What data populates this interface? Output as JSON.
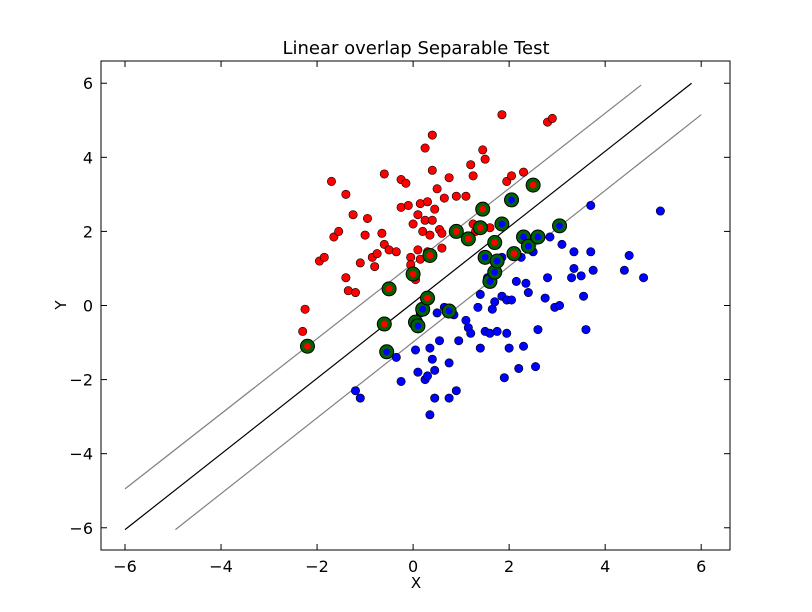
{
  "chart_data": {
    "type": "scatter",
    "title": "Linear overlap Separable Test",
    "xlabel": "X",
    "ylabel": "Y",
    "xlim": [
      -6.5,
      6.6
    ],
    "ylim": [
      -6.6,
      6.6
    ],
    "xticks": [
      -6,
      -4,
      -2,
      0,
      2,
      4,
      6
    ],
    "yticks": [
      -6,
      -4,
      -2,
      0,
      2,
      4,
      6
    ],
    "xtick_labels": [
      "−6",
      "−4",
      "−2",
      "0",
      "2",
      "4",
      "6"
    ],
    "ytick_labels": [
      "−6",
      "−4",
      "−2",
      "0",
      "2",
      "4",
      "6"
    ],
    "grid": false,
    "colors": {
      "class1": "#ff0000",
      "class2": "#0000ff",
      "support_vector_ring": "#006400",
      "boundary": "#000000",
      "margin": "#808080"
    },
    "lines": [
      {
        "role": "decision-boundary",
        "x": [
          -6.0,
          5.8
        ],
        "y": [
          -6.05,
          6.0
        ]
      },
      {
        "role": "upper-margin",
        "x": [
          -6.0,
          4.75
        ],
        "y": [
          -4.95,
          5.95
        ]
      },
      {
        "role": "lower-margin",
        "x": [
          -4.95,
          6.0
        ],
        "y": [
          -6.05,
          5.15
        ]
      }
    ],
    "series": [
      {
        "class": "red",
        "points": [
          [
            -2.3,
            -0.7
          ],
          [
            -2.25,
            -0.1
          ],
          [
            -2.2,
            -1.1
          ],
          [
            -1.95,
            1.2
          ],
          [
            -1.85,
            1.3
          ],
          [
            -1.65,
            1.85
          ],
          [
            -1.55,
            2.0
          ],
          [
            -1.7,
            3.35
          ],
          [
            -1.4,
            3.0
          ],
          [
            -1.4,
            0.75
          ],
          [
            -1.35,
            0.4
          ],
          [
            -1.2,
            0.35
          ],
          [
            -1.25,
            2.45
          ],
          [
            -1.1,
            1.15
          ],
          [
            -1.0,
            1.9
          ],
          [
            -0.95,
            2.35
          ],
          [
            -0.85,
            1.3
          ],
          [
            -0.8,
            1.05
          ],
          [
            -0.75,
            1.4
          ],
          [
            -0.65,
            1.95
          ],
          [
            -0.6,
            1.65
          ],
          [
            -0.5,
            1.5
          ],
          [
            -0.35,
            1.45
          ],
          [
            -0.6,
            3.55
          ],
          [
            -0.25,
            2.65
          ],
          [
            -0.25,
            3.4
          ],
          [
            -0.15,
            3.3
          ],
          [
            -0.1,
            2.7
          ],
          [
            -0.05,
            1.3
          ],
          [
            -0.05,
            1.1
          ],
          [
            0.0,
            2.2
          ],
          [
            0.05,
            0.7
          ],
          [
            0.1,
            1.5
          ],
          [
            0.1,
            2.45
          ],
          [
            0.15,
            2.75
          ],
          [
            0.15,
            1.25
          ],
          [
            0.2,
            2.0
          ],
          [
            0.25,
            2.3
          ],
          [
            0.3,
            2.8
          ],
          [
            0.3,
            1.45
          ],
          [
            0.35,
            1.9
          ],
          [
            0.4,
            2.3
          ],
          [
            0.4,
            3.65
          ],
          [
            0.45,
            2.6
          ],
          [
            0.5,
            3.15
          ],
          [
            0.55,
            2.05
          ],
          [
            0.25,
            4.25
          ],
          [
            0.4,
            4.6
          ],
          [
            0.6,
            1.55
          ],
          [
            0.6,
            1.95
          ],
          [
            0.65,
            2.9
          ],
          [
            0.75,
            3.45
          ],
          [
            0.85,
            2.0
          ],
          [
            0.9,
            2.95
          ],
          [
            1.1,
            2.95
          ],
          [
            1.2,
            3.8
          ],
          [
            1.25,
            3.5
          ],
          [
            1.25,
            2.2
          ],
          [
            1.3,
            2.0
          ],
          [
            1.45,
            4.2
          ],
          [
            1.5,
            3.95
          ],
          [
            1.6,
            2.1
          ],
          [
            1.75,
            1.7
          ],
          [
            1.85,
            5.15
          ],
          [
            1.95,
            3.35
          ],
          [
            2.05,
            3.5
          ],
          [
            2.3,
            3.6
          ],
          [
            2.5,
            3.25
          ],
          [
            2.8,
            4.95
          ],
          [
            2.9,
            5.05
          ],
          [
            2.1,
            1.45
          ],
          [
            -0.6,
            -0.5
          ],
          [
            -0.5,
            0.45
          ],
          [
            0.0,
            0.85
          ],
          [
            0.3,
            0.2
          ],
          [
            0.35,
            1.35
          ],
          [
            0.9,
            2.0
          ],
          [
            1.15,
            1.8
          ],
          [
            1.4,
            2.1
          ],
          [
            1.45,
            2.6
          ],
          [
            1.7,
            1.7
          ]
        ]
      },
      {
        "class": "blue",
        "points": [
          [
            -1.2,
            -2.3
          ],
          [
            -1.1,
            -2.5
          ],
          [
            -0.55,
            -1.25
          ],
          [
            -0.35,
            -1.4
          ],
          [
            -0.25,
            -2.05
          ],
          [
            0.05,
            -0.45
          ],
          [
            0.05,
            -1.2
          ],
          [
            0.1,
            -1.8
          ],
          [
            0.15,
            -0.2
          ],
          [
            0.25,
            -2.0
          ],
          [
            0.3,
            -1.9
          ],
          [
            0.35,
            -1.15
          ],
          [
            0.35,
            -2.95
          ],
          [
            0.4,
            -1.45
          ],
          [
            0.45,
            -1.75
          ],
          [
            0.45,
            -2.5
          ],
          [
            0.5,
            -0.2
          ],
          [
            0.55,
            -0.95
          ],
          [
            0.65,
            -0.05
          ],
          [
            0.75,
            -1.55
          ],
          [
            0.75,
            -2.5
          ],
          [
            0.85,
            -0.25
          ],
          [
            0.9,
            -2.3
          ],
          [
            0.95,
            -0.95
          ],
          [
            1.1,
            -0.4
          ],
          [
            1.15,
            -0.6
          ],
          [
            1.2,
            -0.75
          ],
          [
            1.35,
            -0.05
          ],
          [
            1.4,
            -1.15
          ],
          [
            1.4,
            0.3
          ],
          [
            1.5,
            -0.7
          ],
          [
            1.55,
            0.75
          ],
          [
            1.6,
            -0.75
          ],
          [
            1.65,
            -0.1
          ],
          [
            1.7,
            0.1
          ],
          [
            1.75,
            -0.7
          ],
          [
            1.85,
            0.25
          ],
          [
            1.85,
            1.3
          ],
          [
            1.9,
            -1.95
          ],
          [
            1.95,
            -0.75
          ],
          [
            1.95,
            0.15
          ],
          [
            2.0,
            -1.15
          ],
          [
            2.05,
            0.15
          ],
          [
            2.15,
            0.65
          ],
          [
            2.2,
            -1.7
          ],
          [
            2.25,
            1.3
          ],
          [
            2.3,
            -1.1
          ],
          [
            2.35,
            0.6
          ],
          [
            2.4,
            0.35
          ],
          [
            2.5,
            1.45
          ],
          [
            2.55,
            -1.65
          ],
          [
            2.6,
            -0.65
          ],
          [
            2.75,
            0.2
          ],
          [
            2.8,
            0.75
          ],
          [
            2.85,
            1.85
          ],
          [
            2.95,
            -0.05
          ],
          [
            3.05,
            0.0
          ],
          [
            3.1,
            1.65
          ],
          [
            3.3,
            0.75
          ],
          [
            3.35,
            1.45
          ],
          [
            3.35,
            1.0
          ],
          [
            3.5,
            0.8
          ],
          [
            3.55,
            0.25
          ],
          [
            3.6,
            -0.65
          ],
          [
            3.7,
            2.7
          ],
          [
            3.7,
            1.45
          ],
          [
            3.75,
            0.95
          ],
          [
            4.4,
            0.95
          ],
          [
            4.5,
            1.35
          ],
          [
            4.8,
            0.75
          ],
          [
            5.15,
            2.55
          ],
          [
            0.1,
            -0.55
          ],
          [
            0.2,
            -0.1
          ],
          [
            0.3,
            0.2
          ],
          [
            0.75,
            -0.15
          ],
          [
            1.5,
            1.3
          ],
          [
            1.6,
            0.65
          ],
          [
            1.7,
            0.9
          ],
          [
            1.75,
            1.2
          ],
          [
            1.85,
            2.2
          ],
          [
            2.05,
            2.85
          ],
          [
            2.3,
            1.85
          ],
          [
            2.4,
            1.6
          ],
          [
            2.6,
            1.85
          ],
          [
            3.05,
            2.15
          ]
        ]
      }
    ],
    "support_vectors": [
      [
        -2.2,
        -1.1
      ],
      [
        -0.6,
        -0.5
      ],
      [
        -0.55,
        -1.25
      ],
      [
        -0.5,
        0.45
      ],
      [
        0.05,
        -0.45
      ],
      [
        0.0,
        0.85
      ],
      [
        0.1,
        -0.55
      ],
      [
        0.2,
        -0.1
      ],
      [
        0.3,
        0.2
      ],
      [
        0.35,
        1.35
      ],
      [
        0.75,
        -0.15
      ],
      [
        0.9,
        2.0
      ],
      [
        1.15,
        1.8
      ],
      [
        1.4,
        2.1
      ],
      [
        1.45,
        2.6
      ],
      [
        1.5,
        1.3
      ],
      [
        1.6,
        0.65
      ],
      [
        1.7,
        0.9
      ],
      [
        1.7,
        1.7
      ],
      [
        1.75,
        1.2
      ],
      [
        1.85,
        2.2
      ],
      [
        2.05,
        2.85
      ],
      [
        2.1,
        1.4
      ],
      [
        2.3,
        1.85
      ],
      [
        2.4,
        1.6
      ],
      [
        2.5,
        3.25
      ],
      [
        2.6,
        1.85
      ],
      [
        3.05,
        2.15
      ]
    ]
  }
}
